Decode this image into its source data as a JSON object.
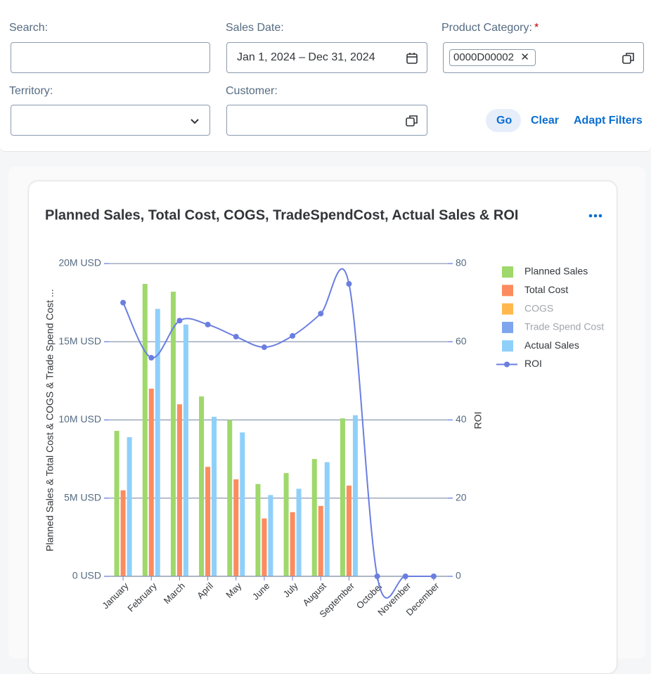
{
  "filters": {
    "search_label": "Search:",
    "sales_date_label": "Sales Date:",
    "sales_date_value": "Jan 1, 2024 – Dec 31, 2024",
    "product_category_label": "Product Category:",
    "required_marker": "*",
    "product_category_token": "0000D00002",
    "territory_label": "Territory:",
    "customer_label": "Customer:",
    "go": "Go",
    "clear": "Clear",
    "adapt_filters": "Adapt Filters"
  },
  "chart_data": {
    "type": "bar_line",
    "title": "Planned Sales, Total Cost, COGS, TradeSpendCost, Actual Sales & ROI",
    "y_label": "Planned Sales & Total Cost & COGS & Trade Spend Cost ...",
    "y2_label": "ROI",
    "categories": [
      "January",
      "February",
      "March",
      "April",
      "May",
      "June",
      "July",
      "August",
      "September",
      "October",
      "November",
      "December"
    ],
    "series": [
      {
        "name": "Planned Sales",
        "color": "#9fd86b",
        "values": [
          9300000,
          18700000,
          18200000,
          11500000,
          10000000,
          5900000,
          6600000,
          7500000,
          10100000,
          0,
          0,
          0
        ]
      },
      {
        "name": "Total Cost",
        "color": "#fc8b5f",
        "values": [
          5500000,
          12000000,
          11000000,
          7000000,
          6200000,
          3700000,
          4100000,
          4500000,
          5800000,
          0,
          0,
          0
        ]
      },
      {
        "name": "COGS",
        "color": "#ffb84e",
        "visible": false,
        "values": [
          null,
          null,
          null,
          null,
          null,
          null,
          null,
          null,
          null,
          null,
          null,
          null
        ]
      },
      {
        "name": "Trade Spend Cost",
        "color": "#7ea5ed",
        "visible": false,
        "values": [
          null,
          null,
          null,
          null,
          null,
          null,
          null,
          null,
          null,
          null,
          null,
          null
        ]
      },
      {
        "name": "Actual Sales",
        "color": "#8fd0fb",
        "values": [
          8900000,
          17100000,
          16100000,
          10200000,
          9200000,
          5200000,
          5600000,
          7300000,
          10300000,
          0,
          0,
          0
        ]
      },
      {
        "name": "ROI",
        "color": "#6a7ee0",
        "type": "line",
        "axis": "y2",
        "values": [
          70,
          55.9,
          65.4,
          64.4,
          61.3,
          58.6,
          61.5,
          67.2,
          74.8,
          0,
          0,
          0
        ]
      }
    ],
    "ylim": [
      0,
      20000000
    ],
    "yticks": [
      {
        "value": 0,
        "label": "0 USD"
      },
      {
        "value": 5000000,
        "label": "5M USD"
      },
      {
        "value": 10000000,
        "label": "10M USD"
      },
      {
        "value": 15000000,
        "label": "15M USD"
      },
      {
        "value": 20000000,
        "label": "20M USD"
      }
    ],
    "y2lim": [
      0,
      80
    ],
    "y2ticks": [
      0,
      20,
      40,
      60,
      80
    ],
    "grid": true,
    "legend": "right"
  }
}
